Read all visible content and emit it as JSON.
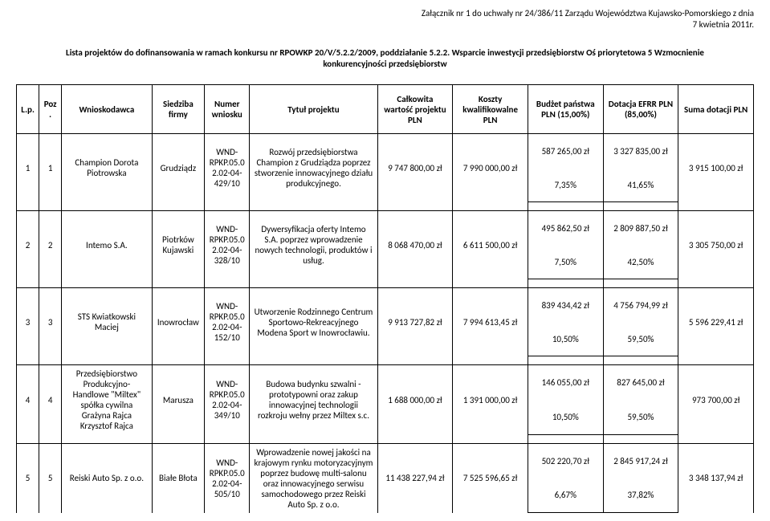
{
  "header_note_line1": "Załącznik nr 1 do uchwały nr  24/386/11 Zarządu Województwa Kujawsko-Pomorskiego z dnia",
  "header_note_line2": "7 kwietnia 2011r.",
  "title_line1": "Lista projektów do dofinansowania w ramach konkursu nr RPOWKP 20/V/5.2.2/2009, poddziałanie 5.2.2. Wsparcie inwestycji przedsiębiorstw Oś priorytetowa 5 Wzmocnienie",
  "title_line2": "konkurencyjności przedsiębiorstw",
  "columns": {
    "lp": "L.p.",
    "poz": "Poz.",
    "wnioskodawca": "Wnioskodawca",
    "siedziba": "Siedziba firmy",
    "numer": "Numer wniosku",
    "tytul": "Tytuł projektu",
    "calkowita": "Całkowita wartość projektu PLN",
    "koszty": "Koszty kwalifikowalne PLN",
    "budzet": "Budżet państwa PLN (15,00%)",
    "dotacja": "Dotacja EFRR PLN (85,00%)",
    "suma": "Suma dotacji PLN"
  },
  "rows": [
    {
      "lp": "1",
      "poz": "1",
      "wnioskodawca": "Champion Dorota Piotrowska",
      "siedziba": "Grudziądz",
      "numer": "WND-RPKP.05.02.02-04-429/10",
      "tytul": "Rozwój przedsiębiorstwa Champion z Grudziądza poprzez stworzenie innowacyjnego działu produkcyjnego.",
      "calkowita": "9 747 800,00 zł",
      "koszty": "7 990 000,00 zł",
      "budzet_top": "587 265,00 zł",
      "budzet_bot": "7,35%",
      "dotacja_top": "3 327 835,00 zł",
      "dotacja_bot": "41,65%",
      "suma": "3 915 100,00 zł"
    },
    {
      "lp": "2",
      "poz": "2",
      "wnioskodawca": "Intemo S.A.",
      "siedziba": "Piotrków Kujawski",
      "numer": "WND-RPKP.05.02.02-04-328/10",
      "tytul": "Dywersyfikacja oferty Intemo S.A. poprzez wprowadzenie nowych technologii, produktów i usług.",
      "calkowita": "8 068 470,00 zł",
      "koszty": "6 611 500,00 zł",
      "budzet_top": "495 862,50 zł",
      "budzet_bot": "7,50%",
      "dotacja_top": "2 809 887,50 zł",
      "dotacja_bot": "42,50%",
      "suma": "3 305 750,00 zł"
    },
    {
      "lp": "3",
      "poz": "3",
      "wnioskodawca": "STS Kwiatkowski Maciej",
      "siedziba": "Inowrocław",
      "numer": "WND-RPKP.05.02.02-04-152/10",
      "tytul": "Utworzenie Rodzinnego Centrum Sportowo-Rekreacyjnego Modena Sport w Inowrocławiu.",
      "calkowita": "9 913 727,82 zł",
      "koszty": "7 994 613,45 zł",
      "budzet_top": "839 434,42 zł",
      "budzet_bot": "10,50%",
      "dotacja_top": "4 756 794,99 zł",
      "dotacja_bot": "59,50%",
      "suma": "5 596 229,41 zł"
    },
    {
      "lp": "4",
      "poz": "4",
      "wnioskodawca": "Przedsiębiorstwo Produkcyjno-Handlowe \"Miltex\" spółka cywilna Grażyna Rajca Krzysztof Rajca",
      "siedziba": "Marusza",
      "numer": "WND-RPKP.05.02.02-04-349/10",
      "tytul": "Budowa budynku szwalni - prototypowni oraz zakup innowacyjnej technologii rozkroju wełny przez Miltex s.c.",
      "calkowita": "1 688 000,00 zł",
      "koszty": "1 391 000,00 zł",
      "budzet_top": "146 055,00 zł",
      "budzet_bot": "10,50%",
      "dotacja_top": "827 645,00 zł",
      "dotacja_bot": "59,50%",
      "suma": "973 700,00 zł"
    },
    {
      "lp": "5",
      "poz": "5",
      "wnioskodawca": "Reiski Auto Sp. z o.o.",
      "siedziba": "Białe Błota",
      "numer": "WND-RPKP.05.02.02-04-505/10",
      "tytul": "Wprowadzenie nowej jakości na krajowym rynku motoryzacyjnym poprzez budowę multi-salonu oraz innowacyjnego serwisu samochodowego przez Reiski Auto Sp. z o.o.",
      "calkowita": "11 438 227,94 zł",
      "koszty": "7 525 596,65 zł",
      "budzet_top": "502 220,70 zł",
      "budzet_bot": "6,67%",
      "dotacja_top": "2 845 917,24 zł",
      "dotacja_bot": "37,82%",
      "suma": "3 348 137,94 zł"
    }
  ]
}
